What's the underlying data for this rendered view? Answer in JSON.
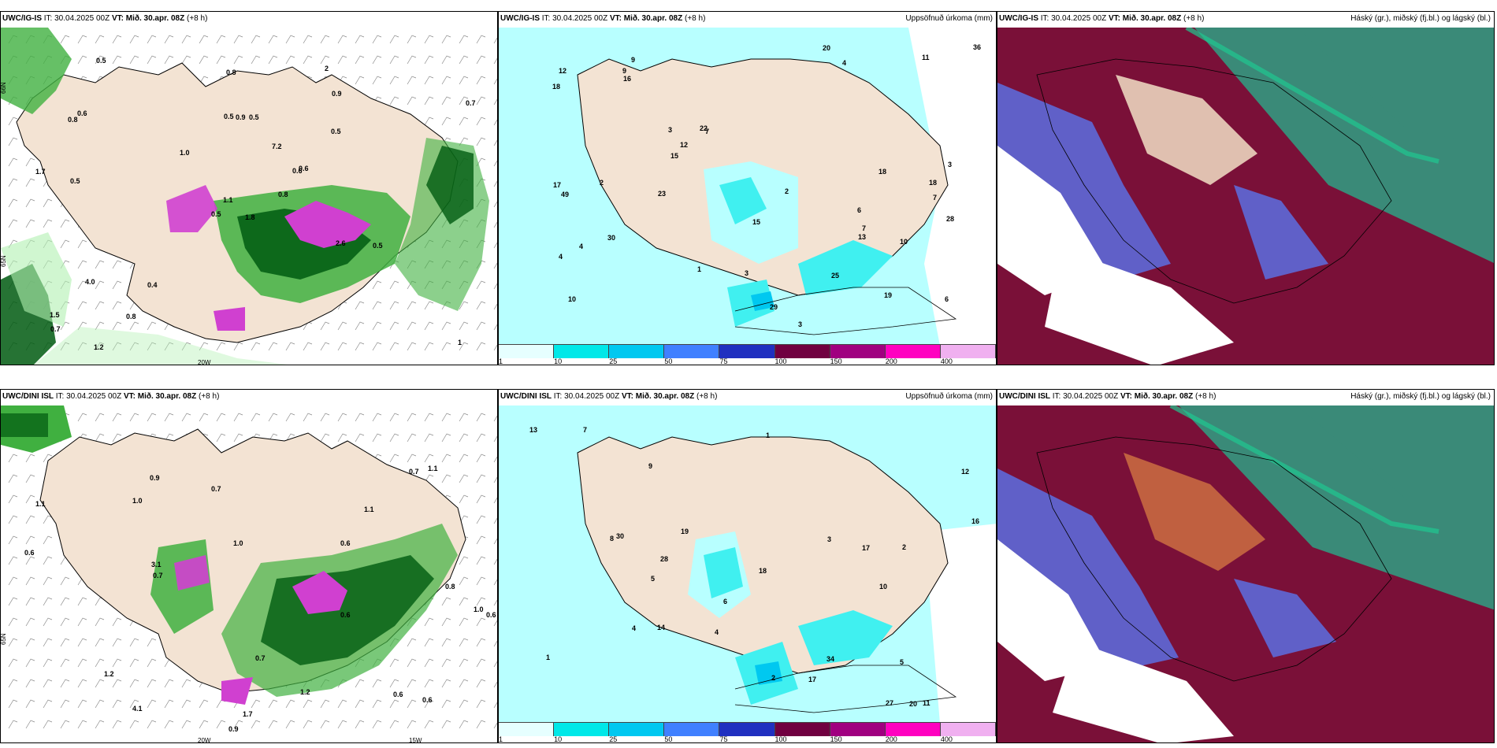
{
  "panels": {
    "p1": {
      "model": "UWC/IG-IS",
      "it": "30.04.2025 00Z",
      "vt": "Mið. 30.apr. 08Z",
      "lead": "(+8 h)",
      "right": ""
    },
    "p2": {
      "model": "UWC/IG-IS",
      "it": "30.04.2025 00Z",
      "vt": "Mið. 30.apr. 08Z",
      "lead": "(+8 h)",
      "right": "Uppsöfnuð úrkoma (mm)"
    },
    "p3": {
      "model": "UWC/IG-IS",
      "it": "30.04.2025 00Z",
      "vt": "Mið. 30.apr. 08Z",
      "lead": "(+8 h)",
      "right": "Háský (gr.), miðský (fj.bl.) og lágský (bl.)"
    },
    "p4": {
      "model": "UWC/DINI ISL",
      "it": "30.04.2025 00Z",
      "vt": "Mið. 30.apr. 08Z",
      "lead": "(+8 h)",
      "right": ""
    },
    "p5": {
      "model": "UWC/DINI ISL",
      "it": "30.04.2025 00Z",
      "vt": "Mið. 30.apr. 08Z",
      "lead": "(+8 h)",
      "right": "Uppsöfnuð úrkoma (mm)"
    },
    "p6": {
      "model": "UWC/DINI ISL",
      "it": "30.04.2025 00Z",
      "vt": "Mið. 30.apr. 08Z",
      "lead": "(+8 h)",
      "right": "Háský (gr.), miðský (fj.bl.) og lágský (bl.)"
    }
  },
  "it_label": "IT:",
  "vt_label": "VT:",
  "axis_labels": {
    "lat65": "65N",
    "lat66": "66N",
    "lon20": "20W",
    "lon15": "15W"
  },
  "colorbar": {
    "ticks": [
      "1",
      "10",
      "25",
      "50",
      "75",
      "100",
      "150",
      "200",
      "400"
    ],
    "colors": [
      "#e6ffff",
      "#00e8e8",
      "#00c8f0",
      "#4080ff",
      "#2030c0",
      "#700040",
      "#a00080",
      "#ff00c0",
      "#f0b0f0"
    ]
  },
  "colors": {
    "land": "#f3e3d3",
    "precip_light": "#b8ffff",
    "precip_mid": "#40f0f0",
    "green_light": "#b0f0b0",
    "green_mid": "#40b040",
    "green_dark": "#005a10",
    "magenta": "#d040d0",
    "cloud_high": "#3a8a78",
    "cloud_mid": "#7a1038",
    "cloud_low": "#6060c8"
  },
  "p1_labels": [
    "1.8",
    "0.8",
    "1.1",
    "1.5",
    "0.6",
    "0.4",
    "2",
    "0.5",
    "0.9",
    "0.8",
    "0.5",
    "1",
    "0.5",
    "0.7",
    "0.5",
    "0.5",
    "1.2",
    "0.5",
    "7.2",
    "4.0",
    "1.0",
    "0.7",
    "0.8",
    "0.9",
    "0.6",
    "0.5",
    "0.6",
    "0.8",
    "1.7",
    "2.6"
  ],
  "p2_labels": [
    "6",
    "7",
    "10",
    "9",
    "7",
    "19",
    "4",
    "4",
    "3",
    "3",
    "18",
    "17",
    "12",
    "6",
    "1",
    "3",
    "15",
    "2",
    "22",
    "30",
    "36",
    "11",
    "15",
    "28",
    "20",
    "9",
    "7",
    "49",
    "16",
    "18",
    "29",
    "25",
    "12",
    "23",
    "18",
    "10",
    "13",
    "2",
    "3",
    "4"
  ],
  "p4_labels": [
    "1.1",
    "1.0",
    "0.6",
    "1.7",
    "0.7",
    "0.9",
    "0.6",
    "0.7",
    "1.1",
    "0.6",
    "1.0",
    "0.9",
    "1.1",
    "1.2",
    "0.6",
    "4.1",
    "3.1",
    "0.7",
    "0.6",
    "1.2",
    "0.6",
    "0.8",
    "1.0",
    "0.7"
  ],
  "p5_labels": [
    "6",
    "8",
    "7",
    "10",
    "11",
    "9",
    "4",
    "5",
    "14",
    "17",
    "2",
    "1",
    "13",
    "27",
    "28",
    "34",
    "18",
    "16",
    "12",
    "19",
    "20",
    "30",
    "17",
    "4",
    "5",
    "3",
    "2",
    "1"
  ]
}
